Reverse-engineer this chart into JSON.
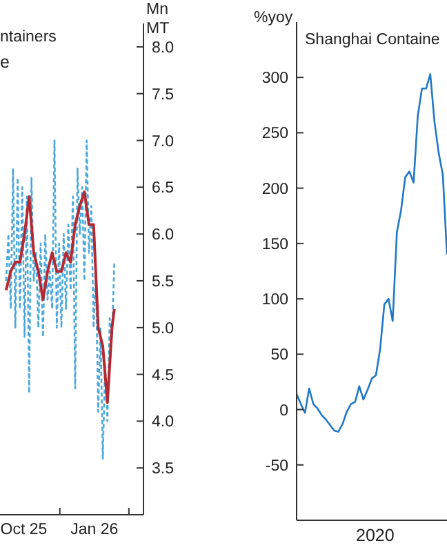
{
  "chart_data": [
    {
      "type": "line",
      "title": "ntainers",
      "annotations": [
        "e"
      ],
      "y2label": "Mn MT",
      "marker": "none",
      "x": [
        "2025-09-22",
        "2025-09-25",
        "2025-09-28",
        "2025-10-01",
        "2025-10-04",
        "2025-10-07",
        "2025-10-10",
        "2025-10-13",
        "2025-10-16",
        "2025-10-19",
        "2025-10-22",
        "2025-10-25",
        "2025-10-28",
        "2025-10-31",
        "2025-11-03",
        "2025-11-06",
        "2025-11-09",
        "2025-11-12",
        "2025-11-15",
        "2025-11-18",
        "2025-11-21",
        "2025-11-24",
        "2025-11-27",
        "2025-11-30",
        "2025-12-03",
        "2025-12-06",
        "2025-12-09",
        "2025-12-12",
        "2025-12-15",
        "2025-12-18",
        "2025-12-21",
        "2025-12-24",
        "2025-12-27",
        "2025-12-30",
        "2026-01-02",
        "2026-01-05",
        "2026-01-08",
        "2026-01-11",
        "2026-01-14",
        "2026-01-17",
        "2026-01-20",
        "2026-01-23",
        "2026-01-26",
        "2026-01-29",
        "2026-02-01",
        "2026-02-04",
        "2026-02-07",
        "2026-02-10"
      ],
      "series": [
        {
          "color": "#4aa8dc",
          "axis": "y2",
          "line_style": "dashed",
          "values": [
            5.5,
            6.0,
            5.2,
            6.7,
            5.0,
            6.6,
            5.2,
            6.5,
            4.9,
            6.4,
            4.3,
            6.6,
            5.5,
            5.8,
            5.0,
            5.9,
            4.9,
            6.0,
            5.3,
            5.6,
            5.2,
            7.0,
            5.0,
            5.9,
            5.0,
            6.0,
            5.2,
            6.1,
            5.4,
            6.4,
            4.35,
            6.7,
            6.0,
            6.5,
            5.5,
            7.0,
            5.8,
            6.3,
            5.0,
            5.6,
            4.1,
            5.0,
            3.6,
            4.6,
            4.0,
            5.1,
            4.9,
            5.7
          ]
        },
        {
          "color": "#b22a32",
          "axis": "y2",
          "line_style": "solid",
          "x": [
            "2025-09-22",
            "2025-09-28",
            "2025-10-04",
            "2025-10-10",
            "2025-10-16",
            "2025-10-22",
            "2025-10-28",
            "2025-11-03",
            "2025-11-09",
            "2025-11-15",
            "2025-11-21",
            "2025-11-27",
            "2025-12-03",
            "2025-12-09",
            "2025-12-15",
            "2025-12-21",
            "2025-12-27",
            "2026-01-02",
            "2026-01-08",
            "2026-01-14",
            "2026-01-20",
            "2026-01-26",
            "2026-02-01",
            "2026-02-07",
            "2026-02-10"
          ],
          "values": [
            5.4,
            5.6,
            5.7,
            5.7,
            6.0,
            6.4,
            5.8,
            5.6,
            5.3,
            5.6,
            5.8,
            5.6,
            5.6,
            5.8,
            5.7,
            6.1,
            6.3,
            6.45,
            6.1,
            6.1,
            5.0,
            4.8,
            4.2,
            5.0,
            5.2
          ]
        }
      ],
      "xlim": [
        "2025-09-14",
        "2026-03-20"
      ],
      "xticks": [
        {
          "value": "2025-10-15",
          "label": "Oct 25"
        },
        {
          "value": "2025-12-01",
          "label": null
        },
        {
          "value": "2026-01-15",
          "label": "Jan 26"
        },
        {
          "value": "2026-03-01",
          "label": null
        }
      ],
      "y2lim": [
        3.0,
        8.25
      ],
      "y2ticks": [
        3.5,
        {
          "value": 4,
          "label": "4.0"
        },
        4.5,
        {
          "value": 5,
          "label": "5.0"
        },
        5.5,
        {
          "value": 6,
          "label": "6.0"
        },
        6.5,
        {
          "value": 7,
          "label": "7.0"
        },
        7.5,
        {
          "value": 8,
          "label": "8.0"
        }
      ]
    },
    {
      "type": "line",
      "title": "Shanghai Containe",
      "ylabel": "%yoy",
      "marker": "none",
      "annotations": [
        "2020"
      ],
      "categories": [
        null,
        null,
        null,
        null,
        null,
        null,
        null,
        null,
        null,
        null,
        null,
        null,
        null,
        null,
        null,
        null,
        null,
        null,
        null,
        null,
        null,
        null,
        null,
        null,
        null,
        null,
        null,
        null,
        null,
        null,
        null,
        null,
        null,
        null,
        null,
        null,
        null
      ],
      "series": [
        {
          "color": "#1f78c8",
          "line_style": "solid",
          "values": [
            14,
            5,
            -3,
            19,
            5,
            1,
            -5,
            -9,
            -14,
            -19,
            -20,
            -13,
            -2,
            5,
            7,
            21,
            9,
            18,
            28,
            31,
            55,
            95,
            100,
            80,
            160,
            180,
            210,
            215,
            205,
            265,
            290,
            290,
            303,
            260,
            232,
            212,
            140
          ]
        }
      ],
      "ylim": [
        -100,
        350
      ],
      "yticks": [
        -50,
        0,
        50,
        100,
        150,
        200,
        250,
        300
      ]
    }
  ]
}
